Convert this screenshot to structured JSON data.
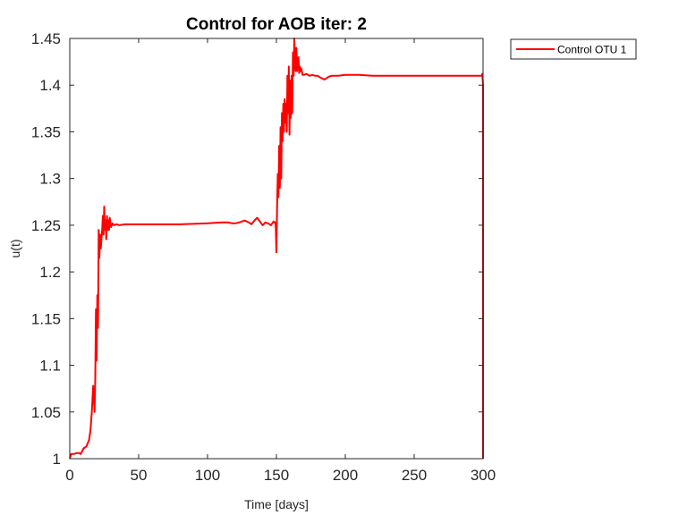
{
  "chart_data": {
    "type": "line",
    "title": "Control for AOB iter: 2",
    "xlabel": "Time [days]",
    "ylabel": "u(t)",
    "xlim": [
      0,
      300
    ],
    "ylim": [
      1,
      1.45
    ],
    "xticks": [
      "0",
      "50",
      "100",
      "150",
      "200",
      "250",
      "300"
    ],
    "yticks": [
      "1",
      "1.05",
      "1.1",
      "1.15",
      "1.2",
      "1.25",
      "1.3",
      "1.35",
      "1.4",
      "1.45"
    ],
    "grid": false,
    "legend_position": "outside top-right",
    "series": [
      {
        "name": "Control OTU 1",
        "color": "#ff0000",
        "x": [
          0,
          1,
          3,
          5,
          7,
          8,
          10,
          12,
          14,
          15,
          16,
          17,
          18,
          18.5,
          19,
          19.5,
          20,
          20.5,
          21,
          21.5,
          22,
          22.5,
          23,
          23.5,
          24,
          24.5,
          25,
          25.5,
          26,
          26.5,
          27,
          27.5,
          28,
          28.5,
          29,
          30,
          31,
          32,
          34,
          36,
          40,
          50,
          60,
          80,
          100,
          110,
          115,
          118,
          120,
          123,
          125,
          127,
          130,
          132,
          134,
          136,
          138,
          140,
          142,
          144,
          146,
          148,
          149,
          149.5,
          150,
          150.5,
          151,
          151.5,
          152,
          152.5,
          153,
          153.5,
          154,
          154.5,
          155,
          155.5,
          156,
          156.5,
          157,
          157.5,
          158,
          158.5,
          159,
          159.5,
          160,
          160.5,
          161,
          161.5,
          162,
          162.5,
          163,
          163.5,
          164,
          164.5,
          165,
          165.5,
          166,
          166.5,
          167,
          167.5,
          168,
          169,
          170,
          172,
          174,
          176,
          178,
          180,
          182,
          185,
          188,
          190,
          195,
          200,
          210,
          220,
          240,
          260,
          280,
          295,
          298,
          299,
          299.5,
          300,
          300,
          300
        ],
        "y": [
          1,
          1.005,
          1.005,
          1.006,
          1.006,
          1.005,
          1.011,
          1.013,
          1.02,
          1.03,
          1.05,
          1.078,
          1.05,
          1.085,
          1.16,
          1.105,
          1.175,
          1.14,
          1.245,
          1.215,
          1.24,
          1.225,
          1.235,
          1.245,
          1.26,
          1.24,
          1.27,
          1.245,
          1.255,
          1.235,
          1.26,
          1.245,
          1.255,
          1.245,
          1.258,
          1.248,
          1.252,
          1.25,
          1.251,
          1.25,
          1.251,
          1.251,
          1.251,
          1.251,
          1.252,
          1.253,
          1.253,
          1.252,
          1.252,
          1.253,
          1.254,
          1.255,
          1.253,
          1.251,
          1.255,
          1.258,
          1.254,
          1.25,
          1.253,
          1.252,
          1.25,
          1.254,
          1.253,
          1.25,
          1.221,
          1.27,
          1.305,
          1.28,
          1.335,
          1.29,
          1.355,
          1.3,
          1.37,
          1.34,
          1.38,
          1.35,
          1.385,
          1.36,
          1.38,
          1.35,
          1.41,
          1.37,
          1.42,
          1.347,
          1.405,
          1.365,
          1.41,
          1.37,
          1.435,
          1.41,
          1.45,
          1.425,
          1.415,
          1.44,
          1.415,
          1.422,
          1.43,
          1.413,
          1.42,
          1.415,
          1.418,
          1.411,
          1.411,
          1.412,
          1.41,
          1.411,
          1.41,
          1.41,
          1.408,
          1.406,
          1.409,
          1.41,
          1.41,
          1.411,
          1.411,
          1.41,
          1.41,
          1.41,
          1.41,
          1.41,
          1.41,
          1.41,
          1.412,
          1.4,
          1.3,
          1.0
        ]
      }
    ]
  }
}
